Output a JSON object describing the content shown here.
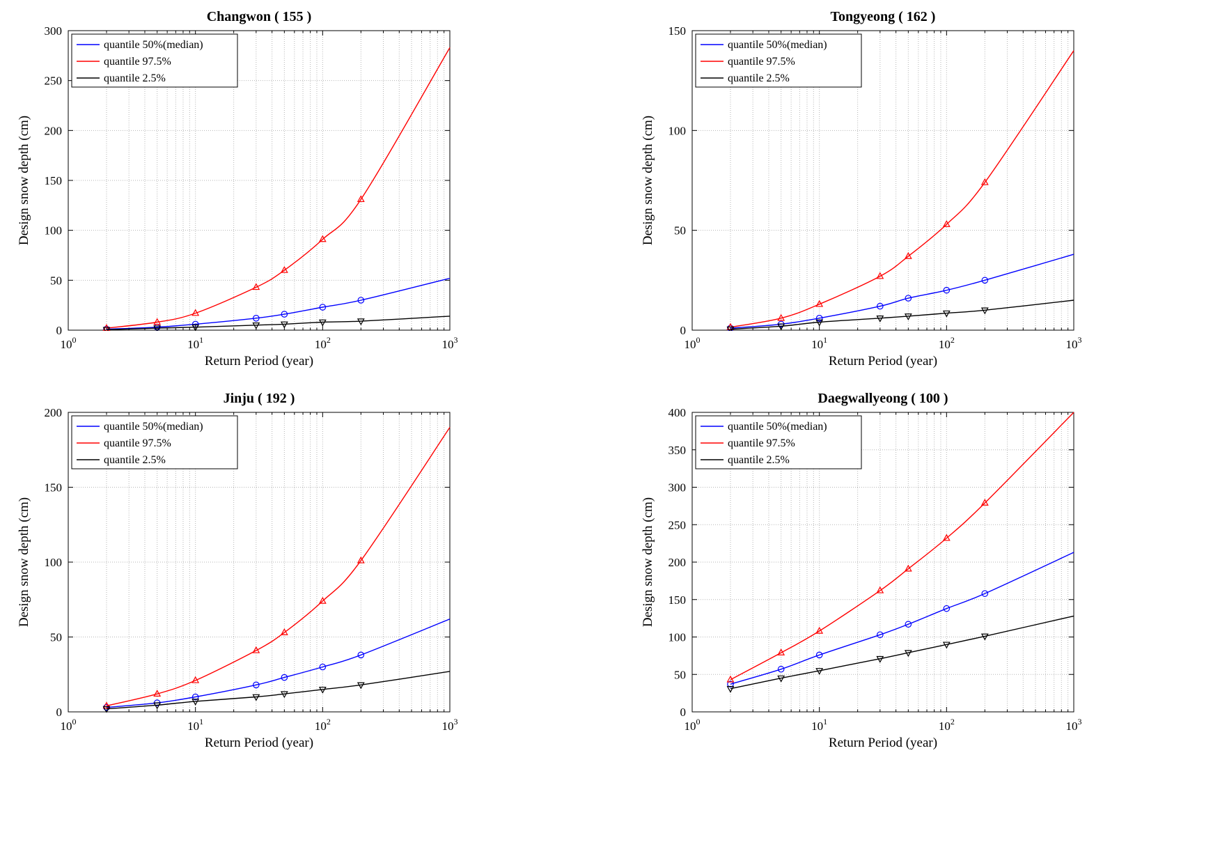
{
  "style": {
    "background": "#ffffff",
    "grid_color": "#b5b5b5",
    "axis_color": "#000000",
    "blue": "#0000ff",
    "red": "#ff0000",
    "black": "#000000",
    "line_width": 1.4
  },
  "chart_data": [
    {
      "type": "line",
      "title": "Changwon ( 155 )",
      "xlabel": "Return Period (year)",
      "ylabel": "Design snow depth (cm)",
      "xscale": "log",
      "grid": "on",
      "legend_position": "top-left",
      "xlim": [
        1,
        1000
      ],
      "ylim": [
        0,
        300
      ],
      "xticks": [
        1,
        10,
        100,
        1000
      ],
      "yticks": [
        0,
        50,
        100,
        150,
        200,
        250,
        300
      ],
      "x": [
        2,
        5,
        10,
        30,
        50,
        100,
        200,
        1000
      ],
      "series": [
        {
          "name": "quantile 50%(median)",
          "color": "#0000ff",
          "marker": "circle",
          "values": [
            1,
            3,
            6,
            12,
            16,
            23,
            30,
            52
          ]
        },
        {
          "name": "quantile 97.5%",
          "color": "#ff0000",
          "marker": "triangle-up",
          "values": [
            2,
            8,
            17,
            43,
            60,
            91,
            131,
            283
          ]
        },
        {
          "name": "quantile 2.5%",
          "color": "#000000",
          "marker": "triangle-down",
          "values": [
            0.5,
            2,
            3,
            5,
            6,
            8,
            9,
            14
          ]
        }
      ]
    },
    {
      "type": "line",
      "title": "Tongyeong ( 162 )",
      "xlabel": "Return Period (year)",
      "ylabel": "Design snow depth (cm)",
      "xscale": "log",
      "grid": "on",
      "legend_position": "top-left",
      "xlim": [
        1,
        1000
      ],
      "ylim": [
        0,
        150
      ],
      "xticks": [
        1,
        10,
        100,
        1000
      ],
      "yticks": [
        0,
        50,
        100,
        150
      ],
      "x": [
        2,
        5,
        10,
        30,
        50,
        100,
        200,
        1000
      ],
      "series": [
        {
          "name": "quantile 50%(median)",
          "color": "#0000ff",
          "marker": "circle",
          "values": [
            1,
            3,
            6,
            12,
            16,
            20,
            25,
            38
          ]
        },
        {
          "name": "quantile 97.5%",
          "color": "#ff0000",
          "marker": "triangle-up",
          "values": [
            1.5,
            6,
            13,
            27,
            37,
            53,
            74,
            140
          ]
        },
        {
          "name": "quantile 2.5%",
          "color": "#000000",
          "marker": "triangle-down",
          "values": [
            0.5,
            2,
            4,
            6,
            7,
            8.5,
            10,
            15
          ]
        }
      ]
    },
    {
      "type": "line",
      "title": "Jinju ( 192 )",
      "xlabel": "Return Period (year)",
      "ylabel": "Design snow depth (cm)",
      "xscale": "log",
      "grid": "on",
      "legend_position": "top-left",
      "xlim": [
        1,
        1000
      ],
      "ylim": [
        0,
        200
      ],
      "xticks": [
        1,
        10,
        100,
        1000
      ],
      "yticks": [
        0,
        50,
        100,
        150,
        200
      ],
      "x": [
        2,
        5,
        10,
        30,
        50,
        100,
        200,
        1000
      ],
      "series": [
        {
          "name": "quantile 50%(median)",
          "color": "#0000ff",
          "marker": "circle",
          "values": [
            3,
            6,
            10,
            18,
            23,
            30,
            38,
            62
          ]
        },
        {
          "name": "quantile 97.5%",
          "color": "#ff0000",
          "marker": "triangle-up",
          "values": [
            4,
            12,
            21,
            41,
            53,
            74,
            101,
            190
          ]
        },
        {
          "name": "quantile 2.5%",
          "color": "#000000",
          "marker": "triangle-down",
          "values": [
            2,
            4.5,
            7,
            10,
            12,
            15,
            18,
            27
          ]
        }
      ]
    },
    {
      "type": "line",
      "title": "Daegwallyeong ( 100 )",
      "xlabel": "Return Period (year)",
      "ylabel": "Design snow depth (cm)",
      "xscale": "log",
      "grid": "on",
      "legend_position": "top-left",
      "xlim": [
        1,
        1000
      ],
      "ylim": [
        0,
        400
      ],
      "xticks": [
        1,
        10,
        100,
        1000
      ],
      "yticks": [
        0,
        50,
        100,
        150,
        200,
        250,
        300,
        350,
        400
      ],
      "x": [
        2,
        5,
        10,
        30,
        50,
        100,
        200,
        1000
      ],
      "series": [
        {
          "name": "quantile 50%(median)",
          "color": "#0000ff",
          "marker": "circle",
          "values": [
            37,
            57,
            76,
            103,
            117,
            138,
            158,
            213
          ]
        },
        {
          "name": "quantile 97.5%",
          "color": "#ff0000",
          "marker": "triangle-up",
          "values": [
            43,
            79,
            108,
            162,
            191,
            232,
            279,
            400
          ]
        },
        {
          "name": "quantile 2.5%",
          "color": "#000000",
          "marker": "triangle-down",
          "values": [
            31,
            45,
            55,
            71,
            79,
            90,
            101,
            128
          ]
        }
      ]
    }
  ]
}
